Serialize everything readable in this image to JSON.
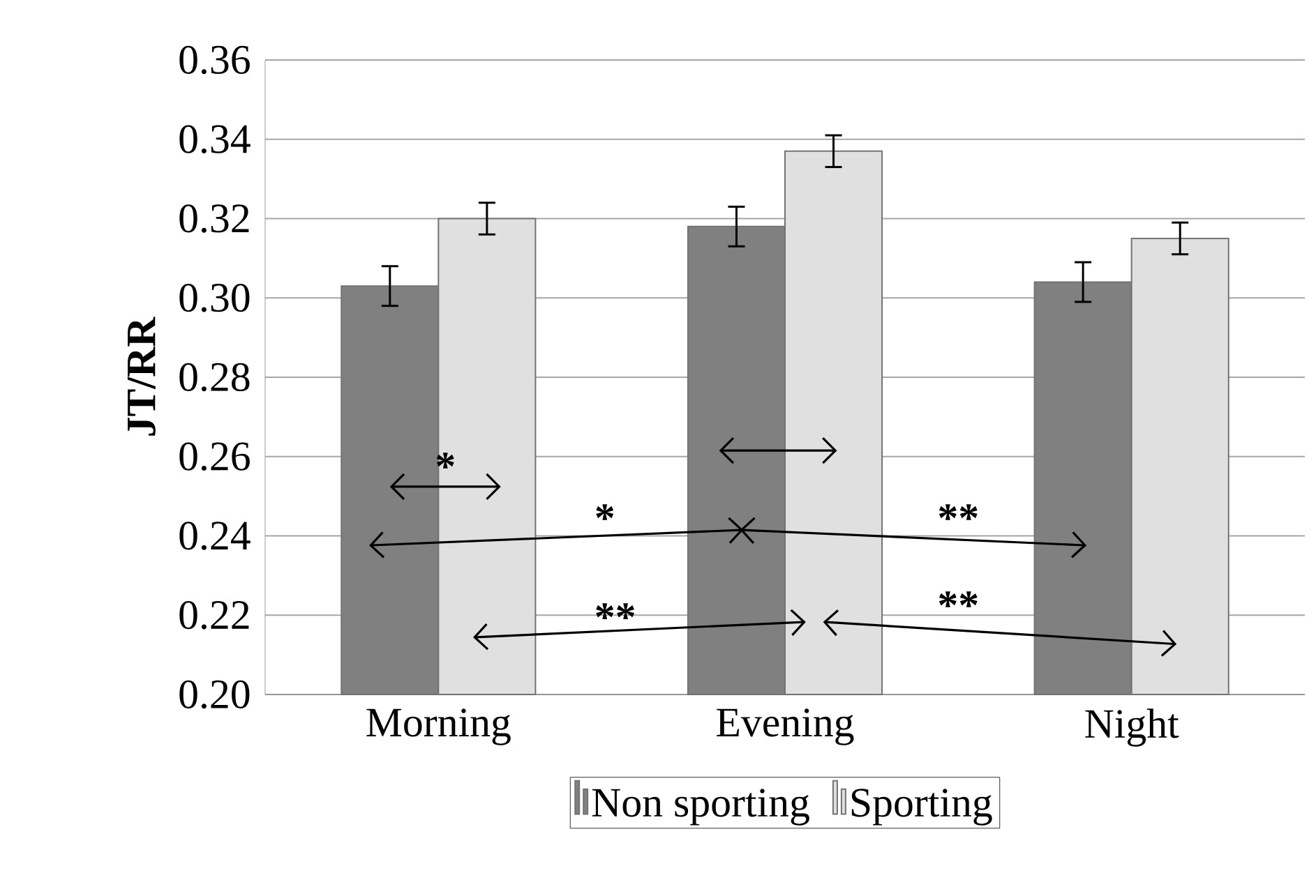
{
  "chart_data": {
    "type": "bar",
    "ylabel": "JT/RR",
    "categories": [
      "Morning",
      "Evening",
      "Night"
    ],
    "series": [
      {
        "name": "Non sporting",
        "color": "#808080",
        "values": [
          0.303,
          0.318,
          0.304
        ],
        "errors": [
          0.005,
          0.005,
          0.005
        ]
      },
      {
        "name": "Sporting",
        "color": "#e0e0e0",
        "values": [
          0.32,
          0.337,
          0.315
        ],
        "errors": [
          0.004,
          0.004,
          0.004
        ]
      }
    ],
    "ylim": [
      0.2,
      0.36
    ],
    "yticks": [
      {
        "value": 0.2,
        "label": "0.20"
      },
      {
        "value": 0.22,
        "label": "0.22"
      },
      {
        "value": 0.24,
        "label": "0.24"
      },
      {
        "value": 0.26,
        "label": "0.26"
      },
      {
        "value": 0.28,
        "label": "0.28"
      },
      {
        "value": 0.3,
        "label": "0.30"
      },
      {
        "value": 0.32,
        "label": "0.32"
      },
      {
        "value": 0.34,
        "label": "0.34"
      },
      {
        "value": 0.36,
        "label": "0.36"
      }
    ],
    "grid": "y",
    "legend": "bottom",
    "annotations": [
      "*",
      "*",
      "**",
      "**",
      "**"
    ]
  }
}
